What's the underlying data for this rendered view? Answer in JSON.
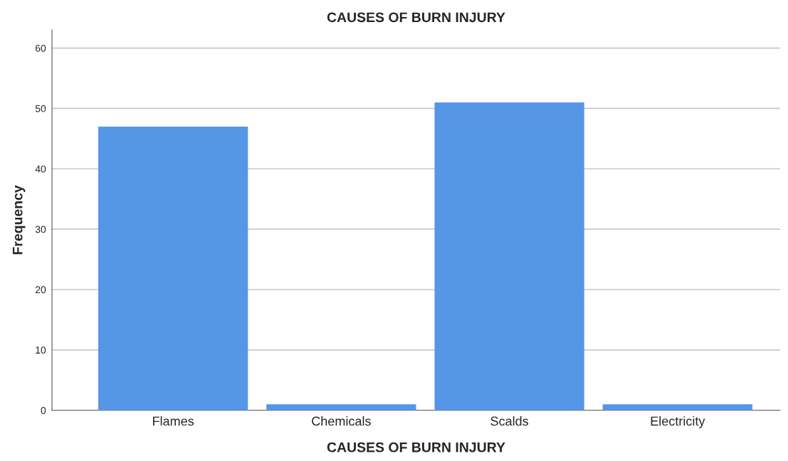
{
  "chart_data": {
    "type": "bar",
    "title": "CAUSES OF BURN INJURY",
    "xlabel": "CAUSES OF BURN INJURY",
    "ylabel": "Frequency",
    "categories": [
      "Flames",
      "Chemicals",
      "Scalds",
      "Electricity"
    ],
    "values": [
      47,
      1,
      51,
      1
    ],
    "color": "#5596e6",
    "ylim": [
      0,
      63
    ],
    "yticks": [
      0,
      10,
      20,
      30,
      40,
      50,
      60
    ],
    "grid": "y",
    "legend": false
  }
}
